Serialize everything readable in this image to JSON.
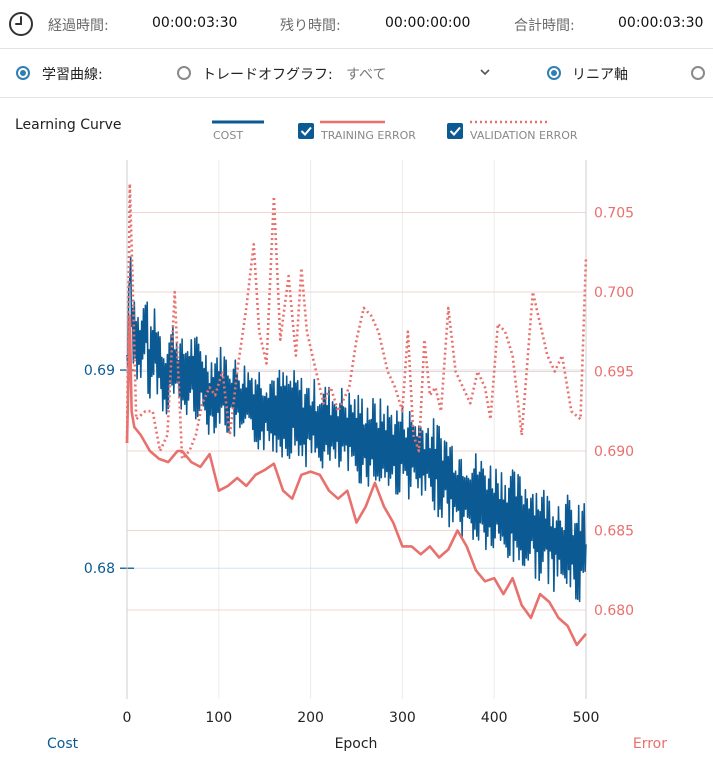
{
  "status_bar": {
    "elapsed_label": "経過時間:",
    "elapsed_value": "00:00:03:30",
    "remaining_label": "残り時間:",
    "remaining_value": "00:00:00:00",
    "total_label": "合計時間:",
    "total_value": "00:00:03:30"
  },
  "options_bar": {
    "learning_curve_label": "学習曲線:",
    "tradeoff_label": "トレードオフグラフ:",
    "select_value": "すべて",
    "linear_axis_label": "リニア軸"
  },
  "colors": {
    "cost": "#0b5a93",
    "error": "#e8706d",
    "grid": "#f2d5d3",
    "axis": "#cfcfcf"
  },
  "chart_data": {
    "type": "line",
    "title": "Learning Curve",
    "xlabel": "Epoch",
    "ylabel_left": "Cost",
    "ylabel_right": "Error",
    "xlim": [
      0,
      500
    ],
    "ylim_left": [
      0.6734,
      0.7006
    ],
    "ylim_right": [
      0.6744,
      0.7083
    ],
    "x_ticks": [
      0,
      100,
      200,
      300,
      400,
      500
    ],
    "x_tick_labels": [
      "0",
      "100",
      "200",
      "300",
      "400",
      "500"
    ],
    "y_left_ticks": [
      0.68,
      0.69
    ],
    "y_left_tick_labels": [
      "0.68",
      "0.69"
    ],
    "y_right_ticks": [
      0.68,
      0.685,
      0.69,
      0.695,
      0.7,
      0.705
    ],
    "y_right_tick_labels": [
      "0.680",
      "0.685",
      "0.690",
      "0.695",
      "0.700",
      "0.705"
    ],
    "legend": [
      "COST",
      "TRAINING ERROR",
      "VALIDATION ERROR"
    ],
    "series": [
      {
        "name": "COST",
        "axis": "left",
        "points": [
          [
            0,
            0.6895
          ],
          [
            3,
            0.6955
          ],
          [
            6,
            0.6925
          ],
          [
            10,
            0.6915
          ],
          [
            15,
            0.6905
          ],
          [
            20,
            0.6925
          ],
          [
            25,
            0.6898
          ],
          [
            30,
            0.6915
          ],
          [
            40,
            0.6895
          ],
          [
            50,
            0.6905
          ],
          [
            60,
            0.6895
          ],
          [
            70,
            0.6898
          ],
          [
            80,
            0.6895
          ],
          [
            90,
            0.6888
          ],
          [
            100,
            0.6892
          ],
          [
            110,
            0.6888
          ],
          [
            120,
            0.6885
          ],
          [
            130,
            0.6883
          ],
          [
            140,
            0.6882
          ],
          [
            150,
            0.688
          ],
          [
            160,
            0.688
          ],
          [
            170,
            0.6878
          ],
          [
            180,
            0.6878
          ],
          [
            190,
            0.6875
          ],
          [
            200,
            0.6873
          ],
          [
            210,
            0.6873
          ],
          [
            220,
            0.687
          ],
          [
            230,
            0.687
          ],
          [
            240,
            0.6868
          ],
          [
            250,
            0.6866
          ],
          [
            260,
            0.6865
          ],
          [
            270,
            0.6863
          ],
          [
            280,
            0.6862
          ],
          [
            290,
            0.686
          ],
          [
            300,
            0.686
          ],
          [
            310,
            0.6858
          ],
          [
            320,
            0.6855
          ],
          [
            330,
            0.6853
          ],
          [
            340,
            0.685
          ],
          [
            350,
            0.6845
          ],
          [
            360,
            0.684
          ],
          [
            370,
            0.6838
          ],
          [
            380,
            0.6835
          ],
          [
            390,
            0.6832
          ],
          [
            400,
            0.683
          ],
          [
            410,
            0.6828
          ],
          [
            420,
            0.6825
          ],
          [
            430,
            0.6823
          ],
          [
            440,
            0.6822
          ],
          [
            450,
            0.6818
          ],
          [
            460,
            0.6815
          ],
          [
            470,
            0.6813
          ],
          [
            480,
            0.6812
          ],
          [
            490,
            0.6805
          ],
          [
            500,
            0.6812
          ]
        ]
      },
      {
        "name": "TRAINING ERROR",
        "axis": "right",
        "points": [
          [
            0,
            0.6905
          ],
          [
            3,
            0.6985
          ],
          [
            5,
            0.6925
          ],
          [
            8,
            0.6915
          ],
          [
            15,
            0.691
          ],
          [
            25,
            0.69
          ],
          [
            35,
            0.6895
          ],
          [
            45,
            0.6893
          ],
          [
            55,
            0.69
          ],
          [
            60,
            0.69
          ],
          [
            70,
            0.6893
          ],
          [
            80,
            0.689
          ],
          [
            90,
            0.6898
          ],
          [
            100,
            0.6875
          ],
          [
            110,
            0.6878
          ],
          [
            120,
            0.6883
          ],
          [
            130,
            0.6878
          ],
          [
            140,
            0.6885
          ],
          [
            150,
            0.6888
          ],
          [
            160,
            0.6892
          ],
          [
            170,
            0.6875
          ],
          [
            180,
            0.687
          ],
          [
            190,
            0.6885
          ],
          [
            200,
            0.6887
          ],
          [
            210,
            0.6885
          ],
          [
            220,
            0.6875
          ],
          [
            230,
            0.687
          ],
          [
            240,
            0.6875
          ],
          [
            250,
            0.6855
          ],
          [
            260,
            0.6865
          ],
          [
            270,
            0.688
          ],
          [
            280,
            0.6865
          ],
          [
            290,
            0.6855
          ],
          [
            300,
            0.684
          ],
          [
            310,
            0.684
          ],
          [
            320,
            0.6835
          ],
          [
            330,
            0.684
          ],
          [
            340,
            0.6833
          ],
          [
            350,
            0.6838
          ],
          [
            360,
            0.685
          ],
          [
            370,
            0.684
          ],
          [
            380,
            0.6825
          ],
          [
            390,
            0.6818
          ],
          [
            400,
            0.682
          ],
          [
            410,
            0.681
          ],
          [
            420,
            0.682
          ],
          [
            430,
            0.6803
          ],
          [
            440,
            0.6795
          ],
          [
            450,
            0.681
          ],
          [
            460,
            0.6805
          ],
          [
            470,
            0.6795
          ],
          [
            480,
            0.679
          ],
          [
            490,
            0.6778
          ],
          [
            500,
            0.6785
          ]
        ]
      },
      {
        "name": "VALIDATION ERROR",
        "axis": "right",
        "points": [
          [
            0,
            0.6905
          ],
          [
            3,
            0.7068
          ],
          [
            6,
            0.701
          ],
          [
            10,
            0.692
          ],
          [
            20,
            0.6925
          ],
          [
            28,
            0.6925
          ],
          [
            36,
            0.69
          ],
          [
            44,
            0.691
          ],
          [
            52,
            0.7
          ],
          [
            60,
            0.6895
          ],
          [
            68,
            0.69
          ],
          [
            75,
            0.691
          ],
          [
            82,
            0.693
          ],
          [
            90,
            0.694
          ],
          [
            96,
            0.6935
          ],
          [
            104,
            0.695
          ],
          [
            112,
            0.691
          ],
          [
            120,
            0.695
          ],
          [
            130,
            0.699
          ],
          [
            138,
            0.703
          ],
          [
            144,
            0.6975
          ],
          [
            152,
            0.6955
          ],
          [
            160,
            0.706
          ],
          [
            167,
            0.697
          ],
          [
            176,
            0.701
          ],
          [
            184,
            0.696
          ],
          [
            190,
            0.7015
          ],
          [
            196,
            0.6975
          ],
          [
            206,
            0.695
          ],
          [
            214,
            0.693
          ],
          [
            222,
            0.694
          ],
          [
            230,
            0.6925
          ],
          [
            242,
            0.694
          ],
          [
            250,
            0.697
          ],
          [
            258,
            0.699
          ],
          [
            266,
            0.6985
          ],
          [
            274,
            0.6975
          ],
          [
            284,
            0.695
          ],
          [
            292,
            0.694
          ],
          [
            300,
            0.6925
          ],
          [
            306,
            0.6975
          ],
          [
            312,
            0.691
          ],
          [
            318,
            0.69
          ],
          [
            324,
            0.697
          ],
          [
            330,
            0.6935
          ],
          [
            336,
            0.694
          ],
          [
            342,
            0.6925
          ],
          [
            350,
            0.699
          ],
          [
            358,
            0.695
          ],
          [
            366,
            0.694
          ],
          [
            374,
            0.693
          ],
          [
            382,
            0.695
          ],
          [
            390,
            0.694
          ],
          [
            396,
            0.692
          ],
          [
            404,
            0.698
          ],
          [
            412,
            0.6975
          ],
          [
            420,
            0.696
          ],
          [
            430,
            0.691
          ],
          [
            442,
            0.7
          ],
          [
            450,
            0.698
          ],
          [
            458,
            0.696
          ],
          [
            466,
            0.695
          ],
          [
            474,
            0.696
          ],
          [
            484,
            0.6925
          ],
          [
            494,
            0.692
          ],
          [
            500,
            0.7022
          ]
        ]
      }
    ]
  }
}
